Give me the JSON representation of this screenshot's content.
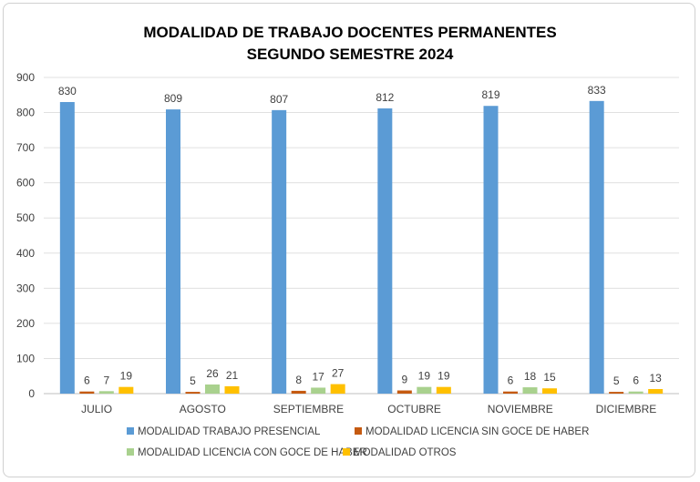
{
  "chart_data": {
    "type": "bar",
    "title": "MODALIDAD DE TRABAJO DOCENTES PERMANENTES",
    "subtitle": "SEGUNDO SEMESTRE 2024",
    "categories": [
      "JULIO",
      "AGOSTO",
      "SEPTIEMBRE",
      "OCTUBRE",
      "NOVIEMBRE",
      "DICIEMBRE"
    ],
    "series": [
      {
        "name": "MODALIDAD TRABAJO PRESENCIAL",
        "color": "#5b9bd5",
        "values": [
          830,
          809,
          807,
          812,
          819,
          833
        ]
      },
      {
        "name": "MODALIDAD LICENCIA SIN GOCE DE HABER",
        "color": "#c55a11",
        "values": [
          6,
          5,
          8,
          9,
          6,
          5
        ]
      },
      {
        "name": "MODALIDAD LICENCIA CON GOCE DE HABER",
        "color": "#a9d18e",
        "values": [
          7,
          26,
          17,
          19,
          18,
          6
        ]
      },
      {
        "name": "MODALIDAD OTROS",
        "color": "#ffc000",
        "values": [
          19,
          21,
          27,
          19,
          15,
          13
        ]
      }
    ],
    "yticks": [
      0,
      100,
      200,
      300,
      400,
      500,
      600,
      700,
      800,
      900
    ],
    "ylim": [
      0,
      900
    ],
    "grid": true,
    "legend_position": "bottom"
  }
}
